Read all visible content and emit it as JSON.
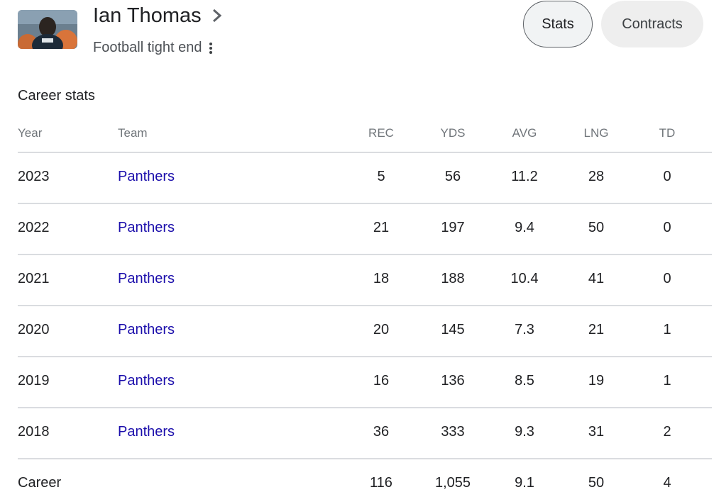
{
  "player": {
    "name": "Ian Thomas",
    "subtitle": "Football tight end",
    "photo_icon": "player-photo"
  },
  "tabs": [
    {
      "label": "Stats",
      "selected": true
    },
    {
      "label": "Contracts",
      "selected": false
    }
  ],
  "section_title": "Career stats",
  "table": {
    "headers": [
      "Year",
      "Team",
      "REC",
      "YDS",
      "AVG",
      "LNG",
      "TD"
    ],
    "rows": [
      {
        "year": "2023",
        "team": "Panthers",
        "rec": "5",
        "yds": "56",
        "avg": "11.2",
        "lng": "28",
        "td": "0"
      },
      {
        "year": "2022",
        "team": "Panthers",
        "rec": "21",
        "yds": "197",
        "avg": "9.4",
        "lng": "50",
        "td": "0"
      },
      {
        "year": "2021",
        "team": "Panthers",
        "rec": "18",
        "yds": "188",
        "avg": "10.4",
        "lng": "41",
        "td": "0"
      },
      {
        "year": "2020",
        "team": "Panthers",
        "rec": "20",
        "yds": "145",
        "avg": "7.3",
        "lng": "21",
        "td": "1"
      },
      {
        "year": "2019",
        "team": "Panthers",
        "rec": "16",
        "yds": "136",
        "avg": "8.5",
        "lng": "19",
        "td": "1"
      },
      {
        "year": "2018",
        "team": "Panthers",
        "rec": "36",
        "yds": "333",
        "avg": "9.3",
        "lng": "31",
        "td": "2"
      },
      {
        "year": "Career",
        "team": "",
        "rec": "116",
        "yds": "1,055",
        "avg": "9.1",
        "lng": "50",
        "td": "4"
      }
    ]
  },
  "colors": {
    "link": "#1a0dab",
    "header_text": "#70757a",
    "divider": "#dadce0"
  }
}
